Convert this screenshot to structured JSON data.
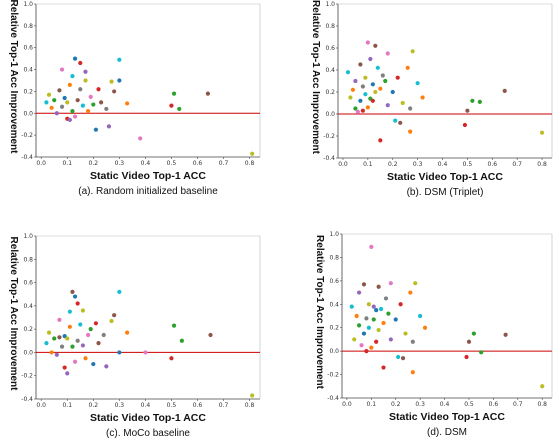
{
  "chart_data": [
    {
      "type": "scatter",
      "caption": "(a). Random initialized baseline",
      "xlabel": "Static Video Top-1 ACC",
      "ylabel": "Relative Top-1 Acc Improvement",
      "xlim": [
        -0.02,
        0.84
      ],
      "ylim": [
        -0.4,
        1.0
      ],
      "xticks": [
        "0.0",
        "0.1",
        "0.2",
        "0.3",
        "0.4",
        "0.5",
        "0.6",
        "0.7",
        "0.8"
      ],
      "yticks": [
        "-0.4",
        "-0.2",
        "0.0",
        "0.2",
        "0.4",
        "0.6",
        "0.8",
        "1.0"
      ],
      "baseline": 0.0,
      "grid": false,
      "points": [
        {
          "x": 0.02,
          "y": 0.1,
          "color": "#17becf"
        },
        {
          "x": 0.03,
          "y": 0.17,
          "color": "#bcbd22"
        },
        {
          "x": 0.04,
          "y": 0.05,
          "color": "#ff7f0e"
        },
        {
          "x": 0.05,
          "y": 0.12,
          "color": "#2ca02c"
        },
        {
          "x": 0.06,
          "y": 0.0,
          "color": "#9467bd"
        },
        {
          "x": 0.07,
          "y": 0.21,
          "color": "#8c564b"
        },
        {
          "x": 0.08,
          "y": 0.4,
          "color": "#e377c2"
        },
        {
          "x": 0.08,
          "y": 0.06,
          "color": "#7f7f7f"
        },
        {
          "x": 0.09,
          "y": 0.14,
          "color": "#1f77b4"
        },
        {
          "x": 0.1,
          "y": -0.05,
          "color": "#d62728"
        },
        {
          "x": 0.1,
          "y": 0.1,
          "color": "#bcbd22"
        },
        {
          "x": 0.11,
          "y": 0.26,
          "color": "#ff7f0e"
        },
        {
          "x": 0.11,
          "y": -0.06,
          "color": "#9467bd"
        },
        {
          "x": 0.12,
          "y": 0.02,
          "color": "#2ca02c"
        },
        {
          "x": 0.12,
          "y": 0.34,
          "color": "#17becf"
        },
        {
          "x": 0.13,
          "y": 0.5,
          "color": "#1f77b4"
        },
        {
          "x": 0.13,
          "y": -0.03,
          "color": "#e377c2"
        },
        {
          "x": 0.14,
          "y": 0.12,
          "color": "#8c564b"
        },
        {
          "x": 0.15,
          "y": 0.46,
          "color": "#d62728"
        },
        {
          "x": 0.15,
          "y": 0.22,
          "color": "#7f7f7f"
        },
        {
          "x": 0.16,
          "y": 0.07,
          "color": "#17becf"
        },
        {
          "x": 0.17,
          "y": 0.3,
          "color": "#bcbd22"
        },
        {
          "x": 0.17,
          "y": 0.38,
          "color": "#9467bd"
        },
        {
          "x": 0.18,
          "y": 0.02,
          "color": "#ff7f0e"
        },
        {
          "x": 0.19,
          "y": 0.15,
          "color": "#e377c2"
        },
        {
          "x": 0.2,
          "y": 0.08,
          "color": "#2ca02c"
        },
        {
          "x": 0.21,
          "y": -0.15,
          "color": "#1f77b4"
        },
        {
          "x": 0.22,
          "y": 0.22,
          "color": "#d62728"
        },
        {
          "x": 0.23,
          "y": 0.1,
          "color": "#8c564b"
        },
        {
          "x": 0.25,
          "y": 0.04,
          "color": "#7f7f7f"
        },
        {
          "x": 0.26,
          "y": -0.12,
          "color": "#9467bd"
        },
        {
          "x": 0.27,
          "y": 0.29,
          "color": "#bcbd22"
        },
        {
          "x": 0.28,
          "y": 0.2,
          "color": "#8c564b"
        },
        {
          "x": 0.3,
          "y": 0.49,
          "color": "#17becf"
        },
        {
          "x": 0.3,
          "y": 0.3,
          "color": "#1f77b4"
        },
        {
          "x": 0.33,
          "y": 0.09,
          "color": "#ff7f0e"
        },
        {
          "x": 0.38,
          "y": -0.23,
          "color": "#e377c2"
        },
        {
          "x": 0.5,
          "y": 0.07,
          "color": "#d62728"
        },
        {
          "x": 0.51,
          "y": 0.18,
          "color": "#2ca02c"
        },
        {
          "x": 0.53,
          "y": 0.04,
          "color": "#2ca02c"
        },
        {
          "x": 0.64,
          "y": 0.18,
          "color": "#8c564b"
        },
        {
          "x": 0.81,
          "y": -0.37,
          "color": "#bcbd22"
        }
      ]
    },
    {
      "type": "scatter",
      "caption": "(b). DSM (Triplet)",
      "xlabel": "Static Video Top-1 ACC",
      "ylabel": "Relative Top-1 Acc Improvement",
      "xlim": [
        -0.02,
        0.84
      ],
      "ylim": [
        -0.4,
        1.0
      ],
      "xticks": [
        "0.0",
        "0.1",
        "0.2",
        "0.3",
        "0.4",
        "0.5",
        "0.6",
        "0.7",
        "0.8"
      ],
      "yticks": [
        "-0.4",
        "-0.2",
        "0.0",
        "0.2",
        "0.4",
        "0.6",
        "0.8",
        "1.0"
      ],
      "baseline": 0.0,
      "grid": false,
      "points": [
        {
          "x": 0.02,
          "y": 0.38,
          "color": "#17becf"
        },
        {
          "x": 0.03,
          "y": 0.15,
          "color": "#bcbd22"
        },
        {
          "x": 0.04,
          "y": 0.22,
          "color": "#ff7f0e"
        },
        {
          "x": 0.05,
          "y": 0.05,
          "color": "#2ca02c"
        },
        {
          "x": 0.05,
          "y": 0.3,
          "color": "#9467bd"
        },
        {
          "x": 0.06,
          "y": 0.02,
          "color": "#e377c2"
        },
        {
          "x": 0.07,
          "y": 0.45,
          "color": "#8c564b"
        },
        {
          "x": 0.07,
          "y": 0.12,
          "color": "#1f77b4"
        },
        {
          "x": 0.08,
          "y": 0.25,
          "color": "#7f7f7f"
        },
        {
          "x": 0.08,
          "y": 0.03,
          "color": "#d62728"
        },
        {
          "x": 0.09,
          "y": 0.33,
          "color": "#bcbd22"
        },
        {
          "x": 0.09,
          "y": 0.18,
          "color": "#17becf"
        },
        {
          "x": 0.1,
          "y": 0.65,
          "color": "#e377c2"
        },
        {
          "x": 0.1,
          "y": 0.06,
          "color": "#ff7f0e"
        },
        {
          "x": 0.11,
          "y": 0.5,
          "color": "#9467bd"
        },
        {
          "x": 0.11,
          "y": 0.14,
          "color": "#2ca02c"
        },
        {
          "x": 0.12,
          "y": 0.27,
          "color": "#1f77b4"
        },
        {
          "x": 0.12,
          "y": 0.12,
          "color": "#d62728"
        },
        {
          "x": 0.13,
          "y": 0.62,
          "color": "#8c564b"
        },
        {
          "x": 0.13,
          "y": 0.2,
          "color": "#bcbd22"
        },
        {
          "x": 0.14,
          "y": 0.42,
          "color": "#17becf"
        },
        {
          "x": 0.15,
          "y": 0.23,
          "color": "#ff7f0e"
        },
        {
          "x": 0.15,
          "y": -0.24,
          "color": "#d62728"
        },
        {
          "x": 0.16,
          "y": 0.35,
          "color": "#7f7f7f"
        },
        {
          "x": 0.17,
          "y": 0.3,
          "color": "#2ca02c"
        },
        {
          "x": 0.18,
          "y": 0.08,
          "color": "#9467bd"
        },
        {
          "x": 0.18,
          "y": 0.55,
          "color": "#e377c2"
        },
        {
          "x": 0.2,
          "y": 0.2,
          "color": "#1f77b4"
        },
        {
          "x": 0.21,
          "y": -0.06,
          "color": "#17becf"
        },
        {
          "x": 0.22,
          "y": 0.33,
          "color": "#d62728"
        },
        {
          "x": 0.23,
          "y": -0.08,
          "color": "#8c564b"
        },
        {
          "x": 0.24,
          "y": 0.1,
          "color": "#bcbd22"
        },
        {
          "x": 0.26,
          "y": 0.42,
          "color": "#ff7f0e"
        },
        {
          "x": 0.27,
          "y": 0.05,
          "color": "#7f7f7f"
        },
        {
          "x": 0.27,
          "y": -0.16,
          "color": "#ff7f0e"
        },
        {
          "x": 0.28,
          "y": 0.57,
          "color": "#bcbd22"
        },
        {
          "x": 0.3,
          "y": 0.28,
          "color": "#17becf"
        },
        {
          "x": 0.32,
          "y": 0.15,
          "color": "#ff7f0e"
        },
        {
          "x": 0.49,
          "y": -0.1,
          "color": "#d62728"
        },
        {
          "x": 0.5,
          "y": 0.03,
          "color": "#8c564b"
        },
        {
          "x": 0.52,
          "y": 0.12,
          "color": "#2ca02c"
        },
        {
          "x": 0.55,
          "y": 0.11,
          "color": "#2ca02c"
        },
        {
          "x": 0.65,
          "y": 0.21,
          "color": "#8c564b"
        },
        {
          "x": 0.8,
          "y": -0.17,
          "color": "#bcbd22"
        }
      ]
    },
    {
      "type": "scatter",
      "caption": "(c). MoCo baseline",
      "xlabel": "Static Video Top-1 ACC",
      "ylabel": "Relative Top-1 Acc Improvement",
      "xlim": [
        -0.02,
        0.84
      ],
      "ylim": [
        -0.4,
        1.0
      ],
      "xticks": [
        "0.0",
        "0.1",
        "0.2",
        "0.3",
        "0.4",
        "0.5",
        "0.6",
        "0.7",
        "0.8"
      ],
      "yticks": [
        "-0.4",
        "-0.2",
        "0.0",
        "0.2",
        "0.4",
        "0.6",
        "0.8",
        "1.0"
      ],
      "baseline": 0.0,
      "grid": false,
      "points": [
        {
          "x": 0.02,
          "y": 0.08,
          "color": "#17becf"
        },
        {
          "x": 0.03,
          "y": 0.17,
          "color": "#bcbd22"
        },
        {
          "x": 0.04,
          "y": 0.0,
          "color": "#ff7f0e"
        },
        {
          "x": 0.05,
          "y": 0.12,
          "color": "#2ca02c"
        },
        {
          "x": 0.06,
          "y": -0.02,
          "color": "#9467bd"
        },
        {
          "x": 0.07,
          "y": 0.13,
          "color": "#8c564b"
        },
        {
          "x": 0.07,
          "y": 0.28,
          "color": "#e377c2"
        },
        {
          "x": 0.08,
          "y": 0.05,
          "color": "#7f7f7f"
        },
        {
          "x": 0.09,
          "y": 0.14,
          "color": "#1f77b4"
        },
        {
          "x": 0.09,
          "y": -0.13,
          "color": "#d62728"
        },
        {
          "x": 0.1,
          "y": 0.12,
          "color": "#bcbd22"
        },
        {
          "x": 0.1,
          "y": -0.18,
          "color": "#9467bd"
        },
        {
          "x": 0.11,
          "y": 0.22,
          "color": "#ff7f0e"
        },
        {
          "x": 0.11,
          "y": 0.35,
          "color": "#17becf"
        },
        {
          "x": 0.12,
          "y": 0.05,
          "color": "#2ca02c"
        },
        {
          "x": 0.12,
          "y": 0.52,
          "color": "#8c564b"
        },
        {
          "x": 0.13,
          "y": 0.48,
          "color": "#1f77b4"
        },
        {
          "x": 0.13,
          "y": -0.08,
          "color": "#e377c2"
        },
        {
          "x": 0.14,
          "y": 0.42,
          "color": "#d62728"
        },
        {
          "x": 0.14,
          "y": 0.1,
          "color": "#7f7f7f"
        },
        {
          "x": 0.15,
          "y": 0.24,
          "color": "#17becf"
        },
        {
          "x": 0.16,
          "y": 0.06,
          "color": "#9467bd"
        },
        {
          "x": 0.16,
          "y": 0.36,
          "color": "#bcbd22"
        },
        {
          "x": 0.17,
          "y": -0.05,
          "color": "#ff7f0e"
        },
        {
          "x": 0.18,
          "y": 0.15,
          "color": "#e377c2"
        },
        {
          "x": 0.19,
          "y": 0.2,
          "color": "#2ca02c"
        },
        {
          "x": 0.2,
          "y": -0.1,
          "color": "#1f77b4"
        },
        {
          "x": 0.21,
          "y": 0.25,
          "color": "#d62728"
        },
        {
          "x": 0.22,
          "y": 0.08,
          "color": "#8c564b"
        },
        {
          "x": 0.24,
          "y": 0.15,
          "color": "#7f7f7f"
        },
        {
          "x": 0.25,
          "y": -0.12,
          "color": "#9467bd"
        },
        {
          "x": 0.27,
          "y": 0.27,
          "color": "#bcbd22"
        },
        {
          "x": 0.28,
          "y": 0.32,
          "color": "#8c564b"
        },
        {
          "x": 0.3,
          "y": 0.52,
          "color": "#17becf"
        },
        {
          "x": 0.3,
          "y": 0.0,
          "color": "#1f77b4"
        },
        {
          "x": 0.33,
          "y": 0.17,
          "color": "#ff7f0e"
        },
        {
          "x": 0.4,
          "y": 0.0,
          "color": "#e377c2"
        },
        {
          "x": 0.5,
          "y": -0.05,
          "color": "#d62728"
        },
        {
          "x": 0.51,
          "y": 0.23,
          "color": "#2ca02c"
        },
        {
          "x": 0.54,
          "y": 0.1,
          "color": "#2ca02c"
        },
        {
          "x": 0.65,
          "y": 0.15,
          "color": "#8c564b"
        },
        {
          "x": 0.81,
          "y": -0.37,
          "color": "#bcbd22"
        }
      ]
    },
    {
      "type": "scatter",
      "caption": "(d). DSM",
      "xlabel": "Static Video Top-1 ACC",
      "ylabel": "Relative Top-1 Acc Improvement",
      "xlim": [
        -0.02,
        0.84
      ],
      "ylim": [
        -0.4,
        1.0
      ],
      "xticks": [
        "0.0",
        "0.1",
        "0.2",
        "0.3",
        "0.4",
        "0.5",
        "0.6",
        "0.7",
        "0.8"
      ],
      "yticks": [
        "-0.4",
        "-0.2",
        "0.0",
        "0.2",
        "0.4",
        "0.6",
        "0.8",
        "1.0"
      ],
      "baseline": 0.0,
      "grid": false,
      "points": [
        {
          "x": 0.02,
          "y": 0.38,
          "color": "#17becf"
        },
        {
          "x": 0.03,
          "y": 0.1,
          "color": "#bcbd22"
        },
        {
          "x": 0.04,
          "y": 0.3,
          "color": "#ff7f0e"
        },
        {
          "x": 0.05,
          "y": 0.22,
          "color": "#2ca02c"
        },
        {
          "x": 0.05,
          "y": 0.5,
          "color": "#9467bd"
        },
        {
          "x": 0.06,
          "y": 0.05,
          "color": "#e377c2"
        },
        {
          "x": 0.07,
          "y": 0.57,
          "color": "#8c564b"
        },
        {
          "x": 0.07,
          "y": 0.15,
          "color": "#1f77b4"
        },
        {
          "x": 0.08,
          "y": 0.28,
          "color": "#7f7f7f"
        },
        {
          "x": 0.08,
          "y": 0.0,
          "color": "#d62728"
        },
        {
          "x": 0.09,
          "y": 0.4,
          "color": "#bcbd22"
        },
        {
          "x": 0.09,
          "y": 0.2,
          "color": "#17becf"
        },
        {
          "x": 0.1,
          "y": 0.89,
          "color": "#e377c2"
        },
        {
          "x": 0.1,
          "y": 0.03,
          "color": "#ff7f0e"
        },
        {
          "x": 0.11,
          "y": 0.38,
          "color": "#9467bd"
        },
        {
          "x": 0.11,
          "y": 0.27,
          "color": "#2ca02c"
        },
        {
          "x": 0.12,
          "y": 0.35,
          "color": "#1f77b4"
        },
        {
          "x": 0.12,
          "y": 0.08,
          "color": "#d62728"
        },
        {
          "x": 0.13,
          "y": 0.55,
          "color": "#8c564b"
        },
        {
          "x": 0.13,
          "y": 0.18,
          "color": "#bcbd22"
        },
        {
          "x": 0.14,
          "y": 0.36,
          "color": "#17becf"
        },
        {
          "x": 0.15,
          "y": 0.24,
          "color": "#ff7f0e"
        },
        {
          "x": 0.15,
          "y": -0.14,
          "color": "#d62728"
        },
        {
          "x": 0.16,
          "y": 0.45,
          "color": "#7f7f7f"
        },
        {
          "x": 0.17,
          "y": 0.32,
          "color": "#2ca02c"
        },
        {
          "x": 0.18,
          "y": 0.1,
          "color": "#9467bd"
        },
        {
          "x": 0.18,
          "y": 0.58,
          "color": "#e377c2"
        },
        {
          "x": 0.2,
          "y": 0.27,
          "color": "#1f77b4"
        },
        {
          "x": 0.21,
          "y": -0.05,
          "color": "#17becf"
        },
        {
          "x": 0.22,
          "y": 0.4,
          "color": "#d62728"
        },
        {
          "x": 0.23,
          "y": -0.06,
          "color": "#8c564b"
        },
        {
          "x": 0.24,
          "y": 0.15,
          "color": "#bcbd22"
        },
        {
          "x": 0.26,
          "y": 0.5,
          "color": "#ff7f0e"
        },
        {
          "x": 0.27,
          "y": 0.08,
          "color": "#7f7f7f"
        },
        {
          "x": 0.27,
          "y": -0.18,
          "color": "#ff7f0e"
        },
        {
          "x": 0.28,
          "y": 0.58,
          "color": "#bcbd22"
        },
        {
          "x": 0.3,
          "y": 0.3,
          "color": "#17becf"
        },
        {
          "x": 0.32,
          "y": 0.2,
          "color": "#ff7f0e"
        },
        {
          "x": 0.49,
          "y": -0.05,
          "color": "#d62728"
        },
        {
          "x": 0.5,
          "y": 0.08,
          "color": "#8c564b"
        },
        {
          "x": 0.52,
          "y": 0.15,
          "color": "#2ca02c"
        },
        {
          "x": 0.55,
          "y": -0.01,
          "color": "#2ca02c"
        },
        {
          "x": 0.65,
          "y": 0.14,
          "color": "#8c564b"
        },
        {
          "x": 0.8,
          "y": -0.3,
          "color": "#bcbd22"
        }
      ]
    }
  ]
}
